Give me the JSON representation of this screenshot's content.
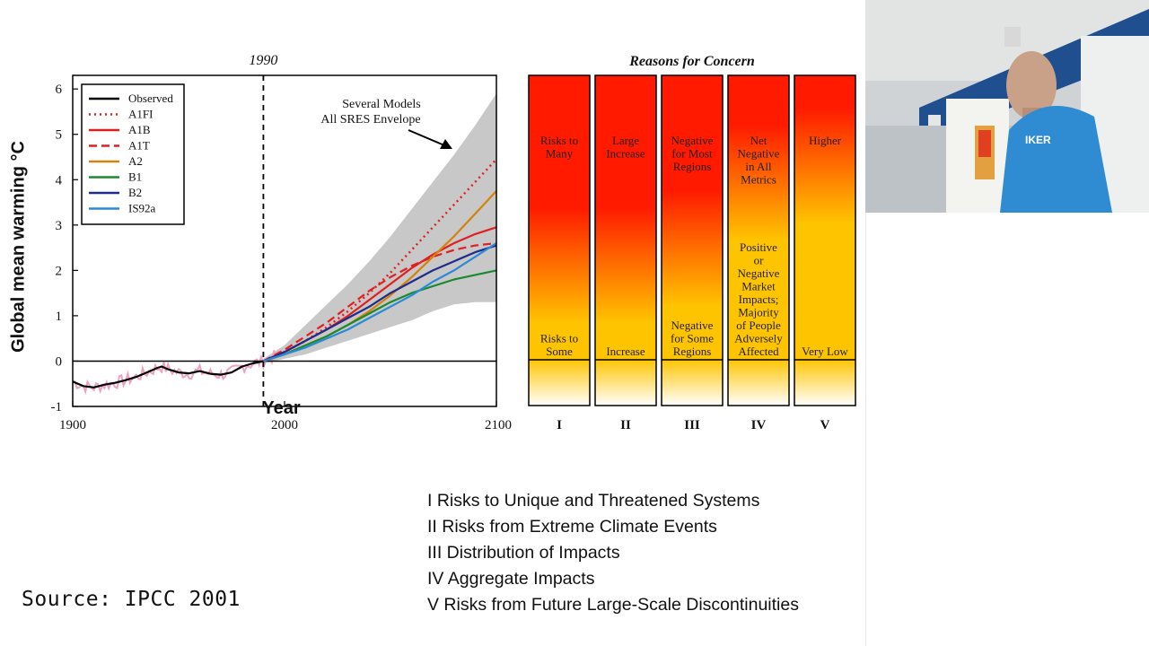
{
  "chart_data": [
    {
      "type": "line",
      "ylabel": "Global mean warming °C",
      "xlim": [
        1900,
        2100
      ],
      "ylim": [
        -1,
        6.3
      ],
      "xticks": [
        "1900",
        "2000",
        "2100"
      ],
      "yticks": [
        "6",
        "5",
        "4",
        "3",
        "2",
        "1",
        "0",
        "-1"
      ],
      "vline_label": "1990",
      "x_annotation": "Year",
      "envelope_annotation": [
        "Several Models",
        "All SRES Envelope"
      ],
      "envelope": {
        "x": [
          1990,
          2000,
          2010,
          2020,
          2030,
          2040,
          2050,
          2060,
          2070,
          2080,
          2090,
          2100
        ],
        "upper": [
          0.05,
          0.35,
          0.8,
          1.25,
          1.7,
          2.2,
          2.75,
          3.35,
          3.95,
          4.55,
          5.2,
          5.9
        ],
        "lower": [
          -0.05,
          0.05,
          0.15,
          0.3,
          0.45,
          0.6,
          0.75,
          0.9,
          1.1,
          1.25,
          1.3,
          1.3
        ]
      },
      "series": [
        {
          "name": "Observed",
          "style": "solid",
          "color": "#000000",
          "x": [
            1900,
            1905,
            1910,
            1915,
            1920,
            1925,
            1930,
            1935,
            1940,
            1942,
            1945,
            1950,
            1955,
            1960,
            1965,
            1970,
            1975,
            1980,
            1985,
            1990,
            1995
          ],
          "y": [
            -0.45,
            -0.55,
            -0.58,
            -0.52,
            -0.48,
            -0.42,
            -0.35,
            -0.25,
            -0.15,
            -0.12,
            -0.18,
            -0.25,
            -0.27,
            -0.22,
            -0.28,
            -0.3,
            -0.25,
            -0.12,
            -0.05,
            0.0,
            0.1
          ]
        },
        {
          "name": "A1FI",
          "style": "dotted",
          "color": "#e02020",
          "x": [
            1990,
            2000,
            2010,
            2020,
            2030,
            2040,
            2050,
            2060,
            2070,
            2080,
            2090,
            2100
          ],
          "y": [
            0.0,
            0.2,
            0.45,
            0.75,
            1.1,
            1.5,
            1.95,
            2.45,
            2.95,
            3.45,
            3.95,
            4.45
          ]
        },
        {
          "name": "A1B",
          "style": "solid",
          "color": "#e02020",
          "x": [
            1990,
            2000,
            2010,
            2020,
            2030,
            2040,
            2050,
            2060,
            2070,
            2080,
            2090,
            2100
          ],
          "y": [
            0.0,
            0.2,
            0.45,
            0.7,
            1.0,
            1.35,
            1.7,
            2.05,
            2.35,
            2.6,
            2.8,
            2.95
          ]
        },
        {
          "name": "A1T",
          "style": "dashed",
          "color": "#e02020",
          "x": [
            1990,
            2000,
            2010,
            2020,
            2030,
            2040,
            2050,
            2060,
            2070,
            2080,
            2090,
            2100
          ],
          "y": [
            0.0,
            0.25,
            0.55,
            0.85,
            1.2,
            1.55,
            1.85,
            2.1,
            2.3,
            2.45,
            2.55,
            2.6
          ]
        },
        {
          "name": "A2",
          "style": "solid",
          "color": "#d4820a",
          "x": [
            1990,
            2000,
            2010,
            2020,
            2030,
            2040,
            2050,
            2060,
            2070,
            2080,
            2090,
            2100
          ],
          "y": [
            0.0,
            0.15,
            0.35,
            0.55,
            0.8,
            1.1,
            1.45,
            1.85,
            2.3,
            2.75,
            3.25,
            3.75
          ]
        },
        {
          "name": "B1",
          "style": "solid",
          "color": "#1a8a2e",
          "x": [
            1990,
            2000,
            2010,
            2020,
            2030,
            2040,
            2050,
            2060,
            2070,
            2080,
            2090,
            2100
          ],
          "y": [
            0.0,
            0.15,
            0.35,
            0.55,
            0.8,
            1.05,
            1.3,
            1.5,
            1.65,
            1.8,
            1.9,
            2.0
          ]
        },
        {
          "name": "B2",
          "style": "solid",
          "color": "#1e2d8a",
          "x": [
            1990,
            2000,
            2010,
            2020,
            2030,
            2040,
            2050,
            2060,
            2070,
            2080,
            2090,
            2100
          ],
          "y": [
            0.0,
            0.2,
            0.45,
            0.7,
            0.95,
            1.2,
            1.5,
            1.75,
            2.0,
            2.2,
            2.4,
            2.55
          ]
        },
        {
          "name": "IS92a",
          "style": "solid",
          "color": "#2a8ad8",
          "x": [
            1990,
            2000,
            2010,
            2020,
            2030,
            2040,
            2050,
            2060,
            2070,
            2080,
            2090,
            2100
          ],
          "y": [
            0.0,
            0.15,
            0.3,
            0.5,
            0.7,
            0.95,
            1.2,
            1.45,
            1.75,
            2.0,
            2.3,
            2.6
          ]
        }
      ]
    },
    {
      "type": "heatmap",
      "title": "Reasons for Concern",
      "columns": [
        {
          "numeral": "I",
          "top_label": "Risks to Many",
          "bottom_label": "Risks to Some",
          "transition": 0.55
        },
        {
          "numeral": "II",
          "top_label": "Large Increase",
          "bottom_label": "Increase",
          "transition": 0.55
        },
        {
          "numeral": "III",
          "top_label": "Negative for Most Regions",
          "bottom_label": "Negative for Some Regions",
          "transition": 0.5
        },
        {
          "numeral": "IV",
          "top_label": "Net Negative in All Metrics",
          "bottom_label": "Positive or Negative Market Impacts; Majority of People Adversely Affected",
          "transition": 0.3
        },
        {
          "numeral": "V",
          "top_label": "Higher",
          "bottom_label": "Very Low",
          "transition": 0.25
        }
      ]
    }
  ],
  "footnotes": [
    "I   Risks to Unique and Threatened Systems",
    "II  Risks from Extreme Climate Events",
    "III Distribution of Impacts",
    "IV Aggregate Impacts",
    "V  Risks from Future Large-Scale Discontinuities"
  ],
  "source": "Source: IPCC 2001",
  "colors": {
    "envelope": "#c8c8c8",
    "observed_noise": "#f0a0c0",
    "hot": "#ff1a00",
    "warm": "#ffc400"
  }
}
